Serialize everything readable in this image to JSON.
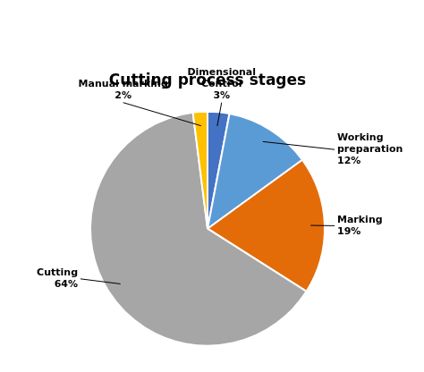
{
  "chart_data": {
    "type": "pie",
    "title": "Cutting process stages",
    "categories": [
      "Dimensional\nControl\n3%",
      "Working\npreparation\n12%",
      "Marking\n19%",
      "Cutting\n64%",
      "Manual marking\n2%"
    ],
    "values": [
      3,
      12,
      19,
      64,
      2
    ],
    "colors": [
      "#4472C4",
      "#5B9BD5",
      "#E36C09",
      "#A6A6A6",
      "#FFC000"
    ]
  }
}
